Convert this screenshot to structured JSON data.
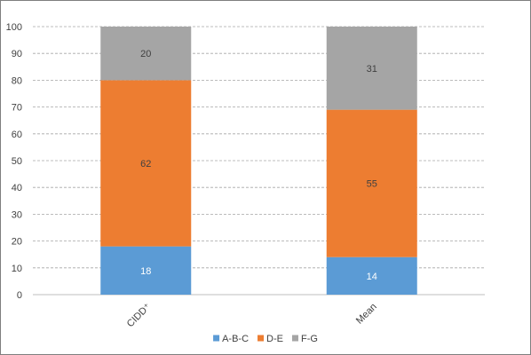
{
  "chart_data": {
    "type": "bar",
    "stacked": true,
    "categories": [
      "CIDD⁺",
      "Mean"
    ],
    "series": [
      {
        "name": "A-B-C",
        "values": [
          18,
          14
        ],
        "color": "#5b9bd5",
        "label_color": "#ffffff"
      },
      {
        "name": "D-E",
        "values": [
          62,
          55
        ],
        "color": "#ed7d31",
        "label_color": "#404040"
      },
      {
        "name": "F-G",
        "values": [
          20,
          31
        ],
        "color": "#a5a5a5",
        "label_color": "#404040"
      }
    ],
    "ylim": [
      0,
      100
    ],
    "yticks": [
      0,
      10,
      20,
      30,
      40,
      50,
      60,
      70,
      80,
      90,
      100
    ],
    "grid": true,
    "grid_style": "dashed",
    "legend_position": "bottom",
    "title": "",
    "xlabel": "",
    "ylabel": ""
  }
}
